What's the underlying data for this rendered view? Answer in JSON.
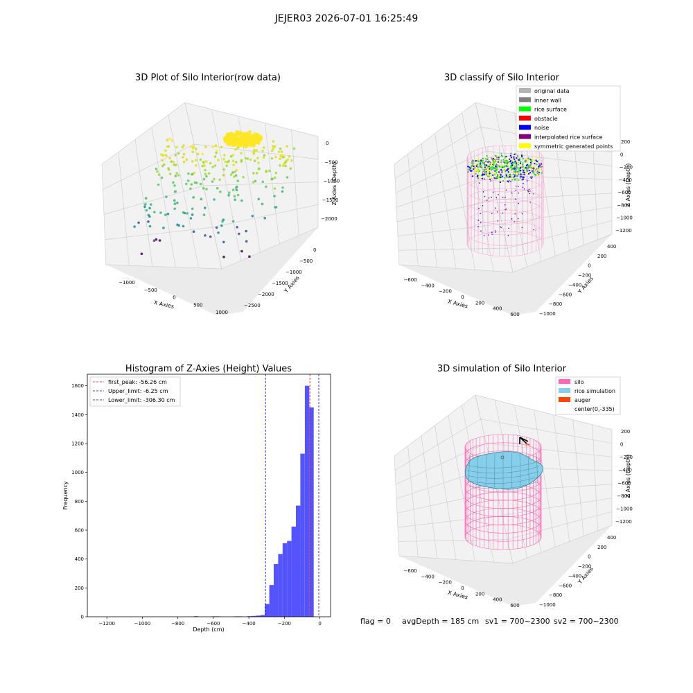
{
  "figure": {
    "suptitle": "JEJER03 2026-07-01 16:25:49",
    "footer": {
      "flag": "flag = 0",
      "avg_depth": "avgDepth = 185 cm",
      "sv1": "sv1 = 700~2300",
      "sv2": "sv2 = 700~2300"
    }
  },
  "colors": {
    "original_data": "#b3b3b3",
    "inner_wall": "#808080",
    "rice_surface": "#00ff00",
    "obstacle": "#ff0000",
    "noise": "#0000ff",
    "interpolated_rice_surface": "#800080",
    "symmetric_generated_points": "#ffff00",
    "silo": "#ff69b4",
    "rice_simulation": "#87ceeb",
    "auger": "#ff4500",
    "histogram_bar": "#4b4bff",
    "first_peak_line": "#ff0000",
    "limit_line": "#0000ff"
  },
  "chart_data": [
    {
      "type": "scatter",
      "subtype": "3d",
      "title": "3D Plot of Silo Interior(row data)",
      "xlabel": "X Axies",
      "ylabel": "Y Axies",
      "zlabel": "Z Axies (Depth)",
      "x_ticks": [
        "−1000",
        "−500",
        "0",
        "500",
        "1000"
      ],
      "y_ticks": [
        "0",
        "−500",
        "−1000",
        "−1500",
        "−2000",
        "−2500"
      ],
      "z_ticks": [
        "0",
        "−500",
        "−1000",
        "−1500",
        "−2000"
      ],
      "colormap": "viridis",
      "grid": true
    },
    {
      "type": "scatter",
      "subtype": "3d",
      "title": "3D classify of Silo Interior",
      "xlabel": "X Axies",
      "ylabel": "Y Axies",
      "zlabel": "Z Axies (Depth)",
      "x_ticks": [
        "−600",
        "−400",
        "−200",
        "0",
        "200",
        "400",
        "600"
      ],
      "y_ticks": [
        "400",
        "200",
        "0",
        "−200",
        "−400",
        "−600",
        "−800",
        "−1000"
      ],
      "z_ticks": [
        "200",
        "0",
        "−200",
        "−400",
        "−600",
        "−800",
        "−1000",
        "−1200"
      ],
      "legend": [
        "original data",
        "inner wall",
        "rice surface",
        "obstacle",
        "noise",
        "interpolated rice surface",
        "symmetric generated points"
      ],
      "legend_position": "top-right",
      "grid": true
    },
    {
      "type": "bar",
      "subtype": "histogram",
      "title": "Histogram of Z-Axies (Height) Values",
      "xlabel": "Depth (cm)",
      "ylabel": "Frequency",
      "xlim": [
        -1310,
        60
      ],
      "ylim": [
        0,
        1680
      ],
      "x_ticks": [
        -1200,
        -1000,
        -800,
        -600,
        -400,
        -200,
        0
      ],
      "x_tick_labels": [
        "−1200",
        "−1000",
        "−800",
        "−600",
        "−400",
        "−200",
        "0"
      ],
      "y_ticks": [
        0,
        200,
        400,
        600,
        800,
        1000,
        1200,
        1400,
        1600
      ],
      "bin_width": 25,
      "bins": [
        {
          "start": -710,
          "value": 4
        },
        {
          "start": -610,
          "value": 3
        },
        {
          "start": -585,
          "value": 3
        },
        {
          "start": -485,
          "value": 3
        },
        {
          "start": -460,
          "value": 3
        },
        {
          "start": -410,
          "value": 4
        },
        {
          "start": -385,
          "value": 6
        },
        {
          "start": -360,
          "value": 8
        },
        {
          "start": -335,
          "value": 12
        },
        {
          "start": -310,
          "value": 88
        },
        {
          "start": -285,
          "value": 220
        },
        {
          "start": -260,
          "value": 365
        },
        {
          "start": -235,
          "value": 435
        },
        {
          "start": -210,
          "value": 510
        },
        {
          "start": -185,
          "value": 525
        },
        {
          "start": -160,
          "value": 625
        },
        {
          "start": -135,
          "value": 770
        },
        {
          "start": -110,
          "value": 1130
        },
        {
          "start": -85,
          "value": 1600
        },
        {
          "start": -60,
          "value": 1450
        }
      ],
      "vlines": [
        {
          "label": "first_peak: -56.26 cm",
          "x": -56.26,
          "color_key": "first_peak_line"
        },
        {
          "label": "Upper_limit: -6.25 cm",
          "x": -6.25,
          "color_key": "limit_line"
        },
        {
          "label": "Lower_limit: -306.30 cm",
          "x": -306.3,
          "color_key": "limit_line"
        }
      ],
      "legend_position": "top-left",
      "grid": false
    },
    {
      "type": "area",
      "subtype": "3d surface",
      "title": "3D simulation of Silo Interior",
      "xlabel": "X Axies",
      "ylabel": "Y Axies",
      "zlabel": "Z Axies (Depth)",
      "x_ticks": [
        "−600",
        "−400",
        "−200",
        "0",
        "200",
        "400",
        "600"
      ],
      "y_ticks": [
        "400",
        "200",
        "0",
        "−200",
        "−400",
        "−600",
        "−800",
        "−1000"
      ],
      "z_ticks": [
        "200",
        "0",
        "−200",
        "−400",
        "−600",
        "−800",
        "−1000",
        "−1200"
      ],
      "legend": [
        "silo",
        "rice simulation",
        "auger",
        "center(0,-335)"
      ],
      "legend_position": "top-right",
      "grid": true
    }
  ]
}
